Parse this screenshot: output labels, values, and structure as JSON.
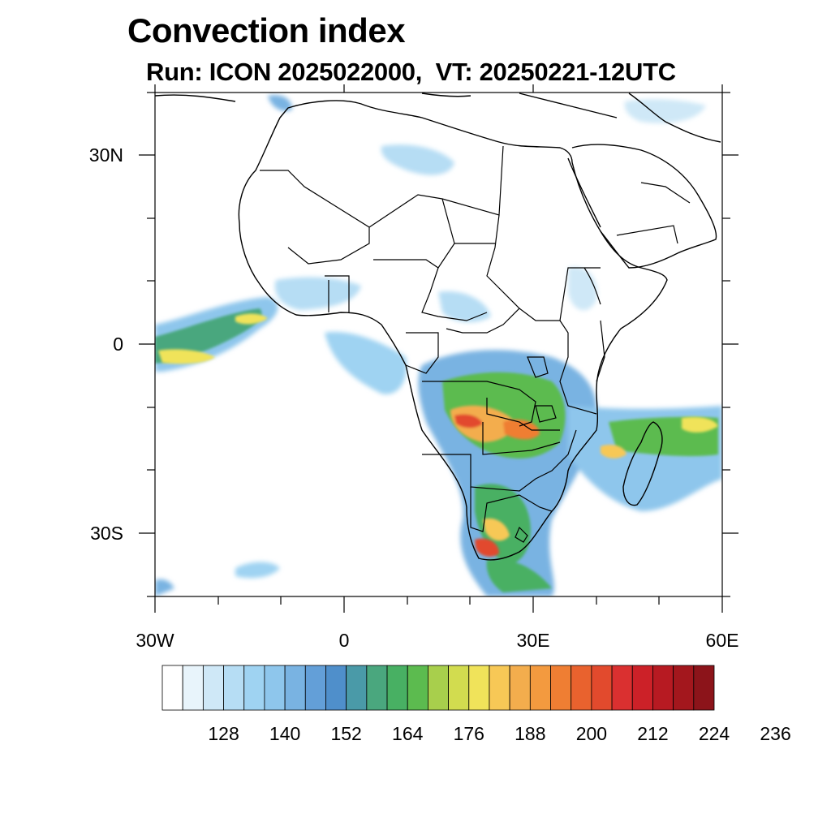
{
  "title": "Convection index",
  "subtitle": "Run: ICON 2025022000,  VT: 20250221-12UTC",
  "map": {
    "region": "Africa",
    "projection": "lat-lon",
    "lon_range": [
      -30,
      60
    ],
    "lat_range": [
      -40,
      40
    ],
    "lat_tick_labels": [
      "30N",
      "0",
      "30S"
    ],
    "lon_tick_labels": [
      "30W",
      "0",
      "30E",
      "60E"
    ]
  },
  "colorbar": {
    "tick_labels": [
      "128",
      "140",
      "152",
      "164",
      "176",
      "188",
      "200",
      "212",
      "224",
      "236"
    ],
    "colors": [
      "#ffffff",
      "#e8f4fb",
      "#cfe8f7",
      "#b6ddf4",
      "#9fd3f2",
      "#8ec6ec",
      "#79b3e2",
      "#639fd8",
      "#4f8fcb",
      "#4a9aa8",
      "#4aa77e",
      "#48b063",
      "#5cbb4f",
      "#a8cf4c",
      "#d2dc4f",
      "#f0e35a",
      "#f7c856",
      "#f3ad4d",
      "#f39a3f",
      "#ef7e33",
      "#e9622e",
      "#e24a2d",
      "#da3030",
      "#cc2128",
      "#b71a22",
      "#a3171d",
      "#8c141a"
    ]
  }
}
